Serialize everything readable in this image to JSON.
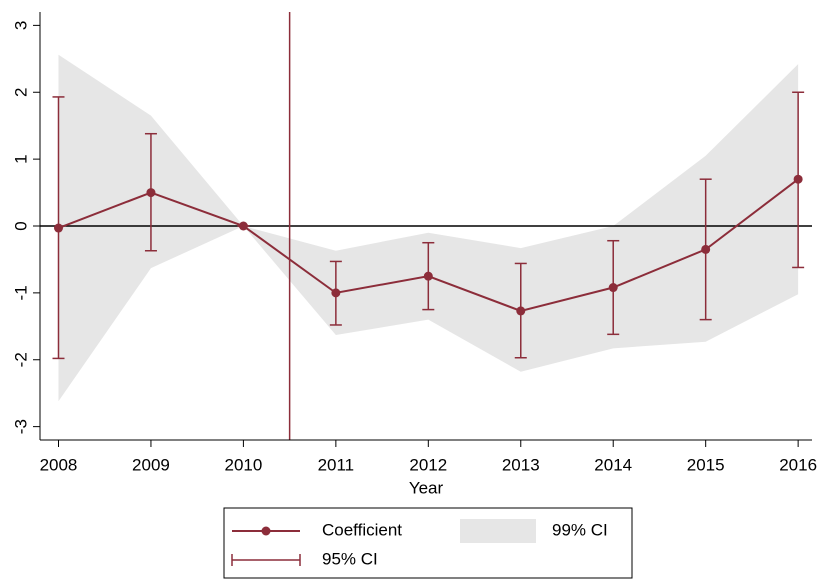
{
  "chart_data": {
    "type": "line",
    "xlabel": "Year",
    "x": [
      2008,
      2009,
      2010,
      2011,
      2012,
      2013,
      2014,
      2015,
      2016
    ],
    "xlim": [
      2007.8,
      2016.15
    ],
    "xticks": [
      2008,
      2009,
      2010,
      2011,
      2012,
      2013,
      2014,
      2015,
      2016
    ],
    "ylim": [
      -3.2,
      3.2
    ],
    "yticks": [
      -3,
      -2,
      -1,
      0,
      1,
      2,
      3
    ],
    "xline": 2010.5,
    "yline": 0,
    "series": [
      {
        "name": "Coefficient",
        "color": "#8c2d3a",
        "values": [
          -0.03,
          0.5,
          0,
          -1.0,
          -0.75,
          -1.27,
          -0.92,
          -0.35,
          0.7
        ]
      },
      {
        "name": "95% CI",
        "color": "#8c2d3a",
        "lower": [
          -1.98,
          -0.37,
          0,
          -1.48,
          -1.25,
          -1.97,
          -1.62,
          -1.4,
          -0.62
        ],
        "upper": [
          1.93,
          1.38,
          0,
          -0.53,
          -0.25,
          -0.56,
          -0.22,
          0.7,
          2.0
        ]
      },
      {
        "name": "99% CI",
        "color": "#e6e6e6",
        "lower": [
          -2.62,
          -0.63,
          0,
          -1.63,
          -1.4,
          -2.18,
          -1.83,
          -1.73,
          -1.02
        ],
        "upper": [
          2.56,
          1.65,
          0,
          -0.37,
          -0.1,
          -0.33,
          0.0,
          1.05,
          2.42
        ]
      }
    ]
  }
}
